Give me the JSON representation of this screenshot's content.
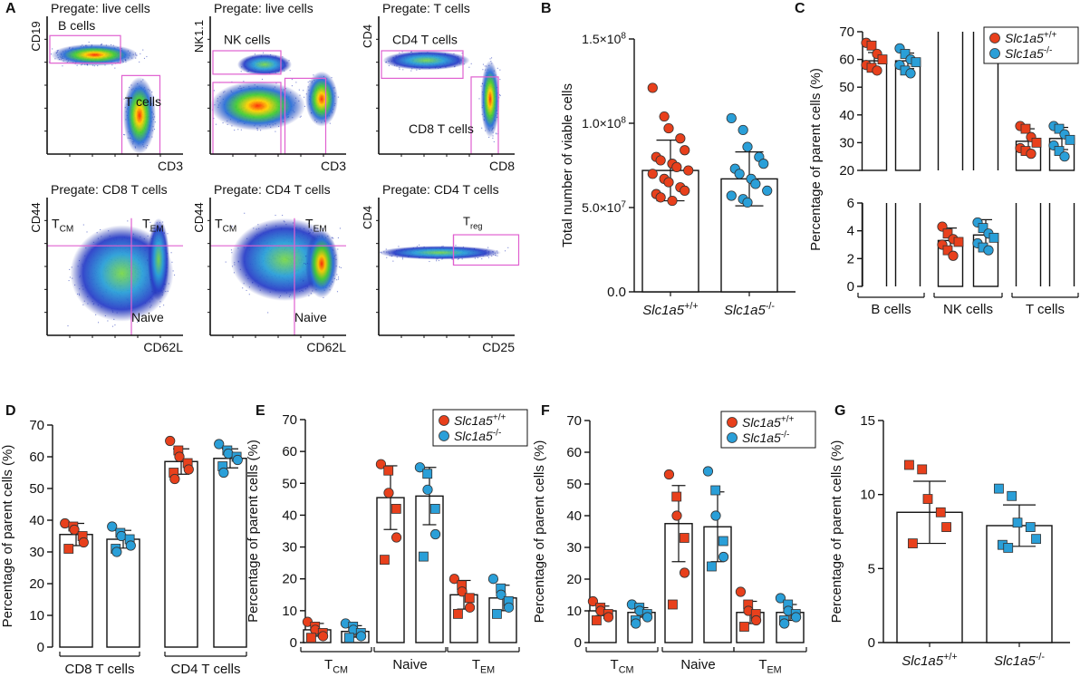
{
  "panels": {
    "A": {
      "letter": "A",
      "plots": [
        {
          "pregate": "Pregate: live cells",
          "y_label": "CD19",
          "x_label": "CD3",
          "gates": [
            "B cells",
            "T cells"
          ]
        },
        {
          "pregate": "Pregate: live cells",
          "y_label": "NK1.1",
          "x_label": "CD3",
          "gates": [
            "NK cells"
          ]
        },
        {
          "pregate": "Pregate: T cells",
          "y_label": "CD4",
          "x_label": "CD8",
          "gates": [
            "CD4 T cells",
            "CD8 T cells"
          ]
        },
        {
          "pregate": "Pregate: CD8 T cells",
          "y_label": "CD44",
          "x_label": "CD62L",
          "gates": [
            "Naive"
          ],
          "quadrants": {
            "left": {
              "base": "T",
              "sub": "CM"
            },
            "right": {
              "base": "T",
              "sub": "EM"
            }
          }
        },
        {
          "pregate": "Pregate: CD4 T cells",
          "y_label": "CD44",
          "x_label": "CD62L",
          "gates": [
            "Naive"
          ],
          "quadrants": {
            "left": {
              "base": "T",
              "sub": "CM"
            },
            "right": {
              "base": "T",
              "sub": "EM"
            }
          }
        },
        {
          "pregate": "Pregate: CD4 T cells",
          "y_label": "CD4",
          "x_label": "CD25",
          "treg": {
            "base": "T",
            "sub": "reg"
          }
        }
      ]
    }
  },
  "colors": {
    "wt": "#e8401c",
    "ko": "#2a9fd8",
    "gate": "#e060d0",
    "axis": "#111111"
  },
  "chart_data": [
    {
      "id": "B",
      "letter": "B",
      "type": "bar",
      "ylabel": "Total number of viable cells",
      "ylim": [
        0,
        150000000
      ],
      "ticks": [
        {
          "v": 0,
          "label": "0.0"
        },
        {
          "v": 50000000,
          "base": "5.0×10",
          "exp": "7"
        },
        {
          "v": 100000000,
          "base": "1.0×10",
          "exp": "8"
        },
        {
          "v": 150000000,
          "base": "1.5×10",
          "exp": "8"
        }
      ],
      "categories": [
        {
          "base": "Slc1a5",
          "sup": "+/+"
        },
        {
          "base": "Slc1a5",
          "sup": "-/-"
        }
      ],
      "series": [
        {
          "name": "Slc1a5+/+",
          "marker": "circle",
          "means": [
            72000000
          ],
          "sd": [
            18000000
          ],
          "points": [
            [
              121000000,
              104000000,
              97000000,
              91000000,
              84000000,
              80000000,
              78000000,
              76000000,
              74000000,
              72000000,
              70000000,
              67000000,
              65000000,
              62000000,
              60000000,
              58000000,
              56000000,
              54000000
            ]
          ]
        },
        {
          "name": "Slc1a5-/-",
          "marker": "circle",
          "means": [
            67000000
          ],
          "sd": [
            16000000
          ],
          "points": [
            [
              103000000,
              96000000,
              86000000,
              80000000,
              76000000,
              73000000,
              70000000,
              67000000,
              64000000,
              60000000,
              57000000,
              55000000,
              53000000
            ]
          ]
        }
      ]
    },
    {
      "id": "C",
      "letter": "C",
      "type": "bar",
      "broken_axis": true,
      "ylabel": "Percentage of parent cells (%)",
      "upper_range": [
        20,
        70
      ],
      "lower_range": [
        0,
        6
      ],
      "upper_ticks": [
        20,
        30,
        40,
        50,
        60,
        70
      ],
      "lower_ticks": [
        0,
        2,
        4,
        6
      ],
      "categories": [
        "B cells",
        "NK cells",
        "T cells"
      ],
      "legend": [
        {
          "base": "Slc1a5",
          "sup": "+/+"
        },
        {
          "base": "Slc1a5",
          "sup": "-/-"
        }
      ],
      "series": [
        {
          "name": "Slc1a5+/+",
          "means": [
            59.5,
            3.3,
            30.5
          ],
          "sd": [
            3.0,
            0.9,
            4.5
          ],
          "points": [
            [
              66,
              65,
              62,
              60,
              58,
              57,
              56
            ],
            [
              4.3,
              3.8,
              3.4,
              3.2,
              3.0,
              2.6,
              2.2
            ],
            [
              36,
              35,
              32,
              30,
              28,
              27,
              26
            ]
          ]
        },
        {
          "name": "Slc1a5-/-",
          "means": [
            59.5,
            3.7,
            31.5
          ],
          "sd": [
            2.8,
            1.1,
            4.0
          ],
          "points": [
            [
              64,
              62,
              60,
              59,
              58,
              56,
              55
            ],
            [
              4.6,
              4.2,
              3.8,
              3.5,
              3.1,
              2.8,
              2.6
            ],
            [
              36,
              35,
              33,
              31,
              29,
              27,
              25
            ]
          ]
        }
      ]
    },
    {
      "id": "D",
      "letter": "D",
      "type": "bar",
      "ylabel": "Percentage of parent cells (%)",
      "ylim": [
        0,
        70
      ],
      "ticks": [
        0,
        10,
        20,
        30,
        40,
        50,
        60,
        70
      ],
      "categories": [
        "CD8 T cells",
        "CD4 T cells"
      ],
      "series": [
        {
          "name": "Slc1a5+/+",
          "means": [
            35.5,
            58.5
          ],
          "sd": [
            3.5,
            4.0
          ],
          "points": [
            [
              39,
              38,
              37,
              35,
              33,
              31
            ],
            [
              65,
              62,
              60,
              58,
              56,
              55,
              53
            ]
          ]
        },
        {
          "name": "Slc1a5-/-",
          "means": [
            34.0,
            59.5
          ],
          "sd": [
            2.8,
            3.0
          ],
          "points": [
            [
              38,
              36,
              35,
              34,
              32,
              31,
              30
            ],
            [
              64,
              62,
              61,
              60,
              59,
              57,
              55
            ]
          ]
        }
      ]
    },
    {
      "id": "E",
      "letter": "E",
      "type": "bar",
      "ylabel": "Percentage of parent cells (%)",
      "ylim": [
        0,
        70
      ],
      "ticks": [
        0,
        10,
        20,
        30,
        40,
        50,
        60,
        70
      ],
      "categories": [
        {
          "base": "T",
          "sub": "CM"
        },
        {
          "base": "Naive"
        },
        {
          "base": "T",
          "sub": "EM"
        }
      ],
      "legend": [
        {
          "base": "Slc1a5",
          "sup": "+/+"
        },
        {
          "base": "Slc1a5",
          "sup": "-/-"
        }
      ],
      "series": [
        {
          "name": "Slc1a5+/+",
          "means": [
            4.0,
            45.5,
            15.0
          ],
          "sd": [
            2.0,
            10.0,
            4.5
          ],
          "points": [
            [
              6.5,
              5,
              4,
              3,
              2,
              1.5
            ],
            [
              56,
              54,
              47,
              42,
              33,
              26
            ],
            [
              20,
              18,
              16,
              14,
              11,
              9
            ]
          ]
        },
        {
          "name": "Slc1a5-/-",
          "means": [
            3.5,
            46.0,
            14.0
          ],
          "sd": [
            1.8,
            9.0,
            4.0
          ],
          "points": [
            [
              6,
              5,
              4,
              3,
              2,
              1.5
            ],
            [
              55,
              53,
              48,
              42,
              34,
              27
            ],
            [
              20,
              17,
              15,
              13,
              11,
              9
            ]
          ]
        }
      ]
    },
    {
      "id": "F",
      "letter": "F",
      "type": "bar",
      "ylabel": "Percentage of parent cells (%)",
      "ylim": [
        0,
        70
      ],
      "ticks": [
        0,
        10,
        20,
        30,
        40,
        50,
        60,
        70
      ],
      "categories": [
        {
          "base": "T",
          "sub": "CM"
        },
        {
          "base": "Naive"
        },
        {
          "base": "T",
          "sub": "EM"
        }
      ],
      "legend": [
        {
          "base": "Slc1a5",
          "sup": "+/+"
        },
        {
          "base": "Slc1a5",
          "sup": "-/-"
        }
      ],
      "series": [
        {
          "name": "Slc1a5+/+",
          "means": [
            10.0,
            37.5,
            9.5
          ],
          "sd": [
            1.5,
            12.0,
            3.5
          ],
          "points": [
            [
              13,
              11,
              10,
              9,
              8,
              7
            ],
            [
              53,
              46,
              40,
              33,
              22,
              12
            ],
            [
              16,
              12,
              10,
              9,
              7,
              5
            ]
          ]
        },
        {
          "name": "Slc1a5-/-",
          "means": [
            9.5,
            36.5,
            9.5
          ],
          "sd": [
            1.5,
            11.0,
            2.5
          ],
          "points": [
            [
              12,
              11,
              10,
              9,
              8,
              7,
              6
            ],
            [
              54,
              48,
              40,
              32,
              27,
              24
            ],
            [
              14,
              12,
              10,
              9,
              8,
              7,
              6
            ]
          ]
        }
      ]
    },
    {
      "id": "G",
      "letter": "G",
      "type": "bar",
      "ylabel": "Percentage of parent cells (%)",
      "ylim": [
        0,
        15
      ],
      "ticks": [
        0,
        5,
        10,
        15
      ],
      "categories": [
        {
          "base": "Slc1a5",
          "sup": "+/+"
        },
        {
          "base": "Slc1a5",
          "sup": "-/-"
        }
      ],
      "series": [
        {
          "name": "Slc1a5+/+",
          "marker": "square",
          "means": [
            8.8
          ],
          "sd": [
            2.1
          ],
          "points": [
            [
              12.0,
              11.7,
              9.7,
              8.8,
              7.8,
              6.7
            ]
          ]
        },
        {
          "name": "Slc1a5-/-",
          "marker": "square",
          "means": [
            7.9
          ],
          "sd": [
            1.4
          ],
          "points": [
            [
              10.4,
              9.9,
              8.1,
              7.8,
              7.0,
              6.6,
              6.4
            ]
          ]
        }
      ]
    }
  ]
}
